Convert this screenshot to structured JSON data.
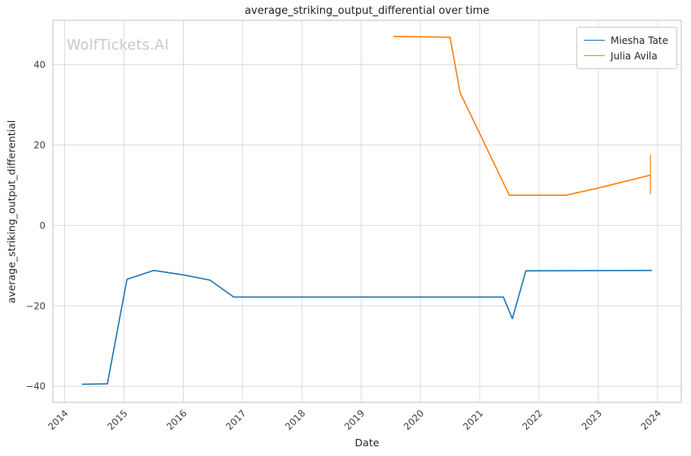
{
  "watermark": "WolfTickets.AI",
  "chart_data": {
    "type": "line",
    "title": "average_striking_output_differential over time",
    "xlabel": "Date",
    "ylabel": "average_striking_output_differential",
    "xlim": [
      2013.8,
      2024.4
    ],
    "ylim": [
      -44,
      51
    ],
    "grid": true,
    "grid_color": "#dcdcdc",
    "spine_color": "#cccccc",
    "tick_label_color": "#3d3d3d",
    "legend_position": "upper right",
    "x_ticks": [
      {
        "value": 2014,
        "label": "2014"
      },
      {
        "value": 2015,
        "label": "2015"
      },
      {
        "value": 2016,
        "label": "2016"
      },
      {
        "value": 2017,
        "label": "2017"
      },
      {
        "value": 2018,
        "label": "2018"
      },
      {
        "value": 2019,
        "label": "2019"
      },
      {
        "value": 2020,
        "label": "2020"
      },
      {
        "value": 2021,
        "label": "2021"
      },
      {
        "value": 2022,
        "label": "2022"
      },
      {
        "value": 2023,
        "label": "2023"
      },
      {
        "value": 2024,
        "label": "2024"
      }
    ],
    "y_ticks": [
      {
        "value": -40,
        "label": "−40"
      },
      {
        "value": -20,
        "label": "−20"
      },
      {
        "value": 0,
        "label": "0"
      },
      {
        "value": 20,
        "label": "20"
      },
      {
        "value": 40,
        "label": "40"
      }
    ],
    "series": [
      {
        "name": "Miesha Tate",
        "color": "#1f77b4",
        "points": [
          [
            2014.3,
            -39.5
          ],
          [
            2014.72,
            -39.4
          ],
          [
            2015.05,
            -13.4
          ],
          [
            2015.5,
            -11.2
          ],
          [
            2016.0,
            -12.3
          ],
          [
            2016.45,
            -13.6
          ],
          [
            2016.85,
            -17.8
          ],
          [
            2021.4,
            -17.8
          ],
          [
            2021.55,
            -23.2
          ],
          [
            2021.78,
            -11.3
          ],
          [
            2023.9,
            -11.2
          ]
        ]
      },
      {
        "name": "Julia Avila",
        "color": "#ff7f0e",
        "points": [
          [
            2019.55,
            47.0
          ],
          [
            2020.5,
            46.8
          ],
          [
            2020.67,
            33.0
          ],
          [
            2021.5,
            7.5
          ],
          [
            2022.45,
            7.5
          ],
          [
            2023.0,
            9.3
          ],
          [
            2023.88,
            12.5
          ]
        ],
        "error_bar": {
          "x": 2023.88,
          "y_low": 7.8,
          "y_high": 17.5
        }
      }
    ]
  }
}
